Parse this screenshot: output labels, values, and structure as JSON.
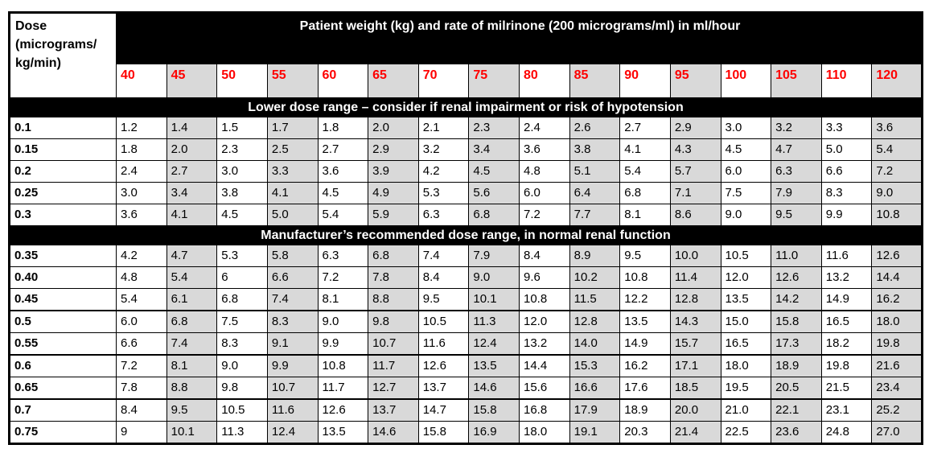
{
  "table": {
    "dose_header_lines": [
      "Dose",
      "(micrograms/",
      "kg/min)"
    ],
    "weight_band_title": "Patient weight (kg) and rate of milrinone (200 micrograms/ml) in ml/hour",
    "weights": [
      "40",
      "45",
      "50",
      "55",
      "60",
      "65",
      "70",
      "75",
      "80",
      "85",
      "90",
      "95",
      "100",
      "105",
      "110",
      "120"
    ],
    "sections": [
      {
        "title": "Lower dose range – consider if renal impairment or risk of hypotension",
        "rows": [
          {
            "dose": "0.1",
            "values": [
              "1.2",
              "1.4",
              "1.5",
              "1.7",
              "1.8",
              "2.0",
              "2.1",
              "2.3",
              "2.4",
              "2.6",
              "2.7",
              "2.9",
              "3.0",
              "3.2",
              "3.3",
              "3.6"
            ]
          },
          {
            "dose": "0.15",
            "values": [
              "1.8",
              "2.0",
              "2.3",
              "2.5",
              "2.7",
              "2.9",
              "3.2",
              "3.4",
              "3.6",
              "3.8",
              "4.1",
              "4.3",
              "4.5",
              "4.7",
              "5.0",
              "5.4"
            ]
          },
          {
            "dose": "0.2",
            "values": [
              "2.4",
              "2.7",
              "3.0",
              "3.3",
              "3.6",
              "3.9",
              "4.2",
              "4.5",
              "4.8",
              "5.1",
              "5.4",
              "5.7",
              "6.0",
              "6.3",
              "6.6",
              "7.2"
            ]
          },
          {
            "dose": "0.25",
            "values": [
              "3.0",
              "3.4",
              "3.8",
              "4.1",
              "4.5",
              "4.9",
              "5.3",
              "5.6",
              "6.0",
              "6.4",
              "6.8",
              "7.1",
              "7.5",
              "7.9",
              "8.3",
              "9.0"
            ]
          },
          {
            "dose": "0.3",
            "values": [
              "3.6",
              "4.1",
              "4.5",
              "5.0",
              "5.4",
              "5.9",
              "6.3",
              "6.8",
              "7.2",
              "7.7",
              "8.1",
              "8.6",
              "9.0",
              "9.5",
              "9.9",
              "10.8"
            ]
          }
        ]
      },
      {
        "title": "Manufacturer’s recommended dose range, in normal renal function",
        "rows": [
          {
            "dose": "0.35",
            "values": [
              "4.2",
              "4.7",
              "5.3",
              "5.8",
              "6.3",
              "6.8",
              "7.4",
              "7.9",
              "8.4",
              "8.9",
              "9.5",
              "10.0",
              "10.5",
              "11.0",
              "11.6",
              "12.6"
            ]
          },
          {
            "dose": "0.40",
            "values": [
              "4.8",
              "5.4",
              "6",
              "6.6",
              "7.2",
              "7.8",
              "8.4",
              "9.0",
              "9.6",
              "10.2",
              "10.8",
              "11.4",
              "12.0",
              "12.6",
              "13.2",
              "14.4"
            ]
          },
          {
            "dose": "0.45",
            "values": [
              "5.4",
              "6.1",
              "6.8",
              "7.4",
              "8.1",
              "8.8",
              "9.5",
              "10.1",
              "10.8",
              "11.5",
              "12.2",
              "12.8",
              "13.5",
              "14.2",
              "14.9",
              "16.2"
            ]
          },
          {
            "dose": "0.5",
            "values": [
              "6.0",
              "6.8",
              "7.5",
              "8.3",
              "9.0",
              "9.8",
              "10.5",
              "11.3",
              "12.0",
              "12.8",
              "13.5",
              "14.3",
              "15.0",
              "15.8",
              "16.5",
              "18.0"
            ]
          },
          {
            "dose": "0.55",
            "values": [
              "6.6",
              "7.4",
              "8.3",
              "9.1",
              "9.9",
              "10.7",
              "11.6",
              "12.4",
              "13.2",
              "14.0",
              "14.9",
              "15.7",
              "16.5",
              "17.3",
              "18.2",
              "19.8"
            ]
          },
          {
            "dose": "0.6",
            "values": [
              "7.2",
              "8.1",
              "9.0",
              "9.9",
              "10.8",
              "11.7",
              "12.6",
              "13.5",
              "14.4",
              "15.3",
              "16.2",
              "17.1",
              "18.0",
              "18.9",
              "19.8",
              "21.6"
            ]
          },
          {
            "dose": "0.65",
            "values": [
              "7.8",
              "8.8",
              "9.8",
              "10.7",
              "11.7",
              "12.7",
              "13.7",
              "14.6",
              "15.6",
              "16.6",
              "17.6",
              "18.5",
              "19.5",
              "20.5",
              "21.5",
              "23.4"
            ]
          },
          {
            "dose": "0.7",
            "values": [
              "8.4",
              "9.5",
              "10.5",
              "11.6",
              "12.6",
              "13.7",
              "14.7",
              "15.8",
              "16.8",
              "17.9",
              "18.9",
              "20.0",
              "21.0",
              "22.1",
              "23.1",
              "25.2"
            ]
          },
          {
            "dose": "0.75",
            "values": [
              "9",
              "10.1",
              "11.3",
              "12.4",
              "13.5",
              "14.6",
              "15.8",
              "16.9",
              "18.0",
              "19.1",
              "20.3",
              "21.4",
              "22.5",
              "23.6",
              "24.8",
              "27.0"
            ]
          }
        ]
      }
    ],
    "colors": {
      "band_background": "#000000",
      "band_text": "#ffffff",
      "weight_number": "#ff0000",
      "column_shade": "#d9d9d9",
      "table_border": "#000000"
    }
  }
}
